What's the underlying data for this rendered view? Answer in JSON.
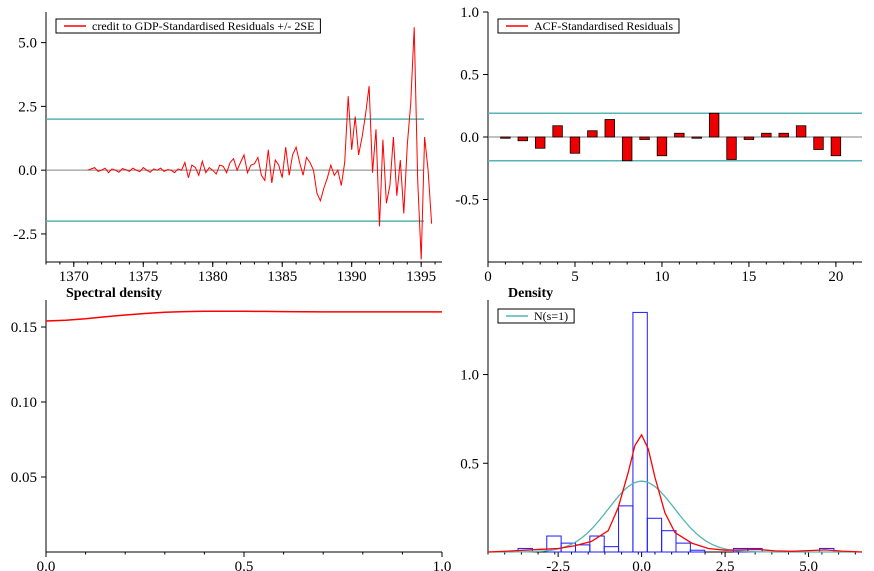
{
  "colors": {
    "series_red": "#ff0000",
    "band_teal": "#55b5b5",
    "hist_blue": "#1a1aff",
    "bar_fill": "#ee0000",
    "axis": "#000000",
    "zero_line": "#808080"
  },
  "chart_data": [
    {
      "id": "residuals",
      "type": "line",
      "title": "",
      "legend": [
        "credit to GDP-Standardised Residuals +/- 2SE"
      ],
      "legend_placement": "top-left",
      "xlim": [
        1368,
        1396.5
      ],
      "ylim": [
        -3.6,
        6.2
      ],
      "xticks": [
        1370,
        1375,
        1380,
        1385,
        1390,
        1395
      ],
      "yticks": [
        -2.5,
        0.0,
        2.5,
        5.0
      ],
      "ytick_labels": [
        "-2.5",
        "0.0",
        "2.5",
        "5.0"
      ],
      "bands": [
        2.0,
        -2.0
      ],
      "zero_line": 0.0,
      "series": [
        {
          "x": [
            1371.0,
            1371.25,
            1371.5,
            1371.75,
            1372.0,
            1372.25,
            1372.5,
            1372.75,
            1373.0,
            1373.25,
            1373.5,
            1373.75,
            1374.0,
            1374.25,
            1374.5,
            1374.75,
            1375.0,
            1375.25,
            1375.5,
            1375.75,
            1376.0,
            1376.25,
            1376.5,
            1376.75,
            1377.0,
            1377.25,
            1377.5,
            1377.75,
            1378.0,
            1378.25,
            1378.5,
            1378.75,
            1379.0,
            1379.25,
            1379.5,
            1379.75,
            1380.0,
            1380.25,
            1380.5,
            1380.75,
            1381.0,
            1381.25,
            1381.5,
            1381.75,
            1382.0,
            1382.25,
            1382.5,
            1382.75,
            1383.0,
            1383.25,
            1383.5,
            1383.75,
            1384.0,
            1384.25,
            1384.5,
            1384.75,
            1385.0,
            1385.25,
            1385.5,
            1385.75,
            1386.0,
            1386.25,
            1386.5,
            1386.75,
            1387.0,
            1387.25,
            1387.5,
            1387.75,
            1388.0,
            1388.25,
            1388.5,
            1388.75,
            1389.0,
            1389.25,
            1389.5,
            1389.75,
            1390.0,
            1390.25,
            1390.5,
            1390.75,
            1391.0,
            1391.25,
            1391.5,
            1391.75,
            1392.0,
            1392.25,
            1392.5,
            1392.75,
            1393.0,
            1393.25,
            1393.5,
            1393.75,
            1394.0,
            1394.25,
            1394.5,
            1394.75,
            1395.0,
            1395.25,
            1395.5,
            1395.75
          ],
          "y": [
            0.0,
            0.05,
            0.1,
            -0.05,
            0.0,
            0.08,
            -0.1,
            0.05,
            0.0,
            -0.08,
            0.06,
            0.02,
            -0.05,
            0.08,
            0.0,
            -0.06,
            0.1,
            0.0,
            -0.08,
            0.05,
            0.0,
            0.08,
            -0.05,
            0.02,
            0.0,
            -0.1,
            0.05,
            0.0,
            0.3,
            -0.3,
            0.2,
            0.1,
            -0.2,
            0.35,
            -0.1,
            0.1,
            0.0,
            -0.15,
            0.2,
            0.15,
            -0.1,
            0.3,
            0.45,
            0.0,
            0.3,
            0.6,
            -0.1,
            0.2,
            0.25,
            0.5,
            -0.2,
            -0.4,
            0.8,
            -0.5,
            0.4,
            0.2,
            -0.3,
            0.9,
            -0.2,
            0.6,
            0.9,
            0.3,
            -0.2,
            0.5,
            0.3,
            0.0,
            -0.9,
            -1.2,
            -0.7,
            -0.3,
            0.2,
            -0.2,
            0.0,
            -0.6,
            0.3,
            2.9,
            0.8,
            2.1,
            0.6,
            1.3,
            2.2,
            3.3,
            -0.1,
            1.6,
            -2.2,
            1.2,
            -1.3,
            -0.6,
            1.3,
            -1.0,
            0.4,
            -1.7,
            1.0,
            2.6,
            5.6,
            -0.4,
            -3.5,
            1.3,
            0.0,
            -2.1
          ]
        }
      ]
    },
    {
      "id": "acf",
      "type": "bar",
      "title": "",
      "legend": [
        "ACF-Standardised Residuals"
      ],
      "legend_placement": "top-left",
      "xlim": [
        0,
        21.5
      ],
      "ylim": [
        -1.0,
        1.0
      ],
      "xticks": [
        0,
        5,
        10,
        15,
        20
      ],
      "yticks": [
        -0.5,
        0.0,
        0.5,
        1.0
      ],
      "ytick_labels": [
        "-0.5",
        "0.0",
        "0.5",
        "1.0"
      ],
      "bands": [
        0.19,
        -0.19
      ],
      "zero_line": 0.0,
      "x": [
        1,
        2,
        3,
        4,
        5,
        6,
        7,
        8,
        9,
        10,
        11,
        12,
        13,
        14,
        15,
        16,
        17,
        18,
        19,
        20
      ],
      "values": [
        -0.01,
        -0.03,
        -0.09,
        0.09,
        -0.13,
        0.05,
        0.14,
        -0.19,
        -0.02,
        -0.15,
        0.03,
        -0.01,
        0.19,
        -0.18,
        -0.02,
        0.03,
        0.03,
        0.09,
        -0.1,
        -0.15
      ]
    },
    {
      "id": "spectral",
      "type": "line",
      "title": "Spectral density",
      "xlim": [
        0.0,
        1.0
      ],
      "ylim": [
        0.0,
        0.168
      ],
      "xticks": [
        0.0,
        0.5,
        1.0
      ],
      "xtick_labels": [
        "0.0",
        "0.5",
        "1.0"
      ],
      "yticks": [
        0.05,
        0.1,
        0.15
      ],
      "ytick_labels": [
        "0.05",
        "0.10",
        "0.15"
      ],
      "series": [
        {
          "x": [
            0.0,
            0.05,
            0.1,
            0.15,
            0.2,
            0.25,
            0.3,
            0.35,
            0.4,
            0.45,
            0.5,
            0.55,
            0.6,
            0.65,
            0.7,
            0.75,
            0.8,
            0.85,
            0.9,
            0.95,
            1.0
          ],
          "y": [
            0.154,
            0.1545,
            0.1555,
            0.1568,
            0.158,
            0.159,
            0.1598,
            0.1603,
            0.1605,
            0.1605,
            0.1605,
            0.1604,
            0.1603,
            0.1602,
            0.1601,
            0.1601,
            0.1601,
            0.1601,
            0.1601,
            0.1601,
            0.1601
          ]
        }
      ]
    },
    {
      "id": "density",
      "type": "bar",
      "title": "Density",
      "legend": [
        "N(s=1)"
      ],
      "legend_placement": "top-left",
      "xlim": [
        -4.6,
        6.6
      ],
      "ylim": [
        0.0,
        1.42
      ],
      "xticks": [
        -2.5,
        0.0,
        2.5,
        5.0
      ],
      "xtick_labels": [
        "-2.5",
        "0.0",
        "2.5",
        "5.0"
      ],
      "yticks": [
        0.5,
        1.0
      ],
      "ytick_labels": [
        "0.5",
        "1.0"
      ],
      "histogram": {
        "bin_width": 0.43,
        "bins_left": [
          -3.7,
          -3.27,
          -2.84,
          -2.41,
          -1.98,
          -1.55,
          -1.12,
          -0.69,
          -0.26,
          0.17,
          0.6,
          1.03,
          1.46,
          2.75,
          3.18,
          5.33
        ],
        "heights": [
          0.02,
          0.0,
          0.09,
          0.05,
          0.04,
          0.09,
          0.03,
          0.26,
          1.35,
          0.19,
          0.12,
          0.05,
          0.01,
          0.02,
          0.02,
          0.02
        ]
      },
      "normal_mean": 0.0,
      "normal_sd": 1.0,
      "kernel_density": {
        "x": [
          -4.6,
          -4.0,
          -3.5,
          -3.0,
          -2.5,
          -2.0,
          -1.5,
          -1.0,
          -0.7,
          -0.4,
          -0.2,
          0.0,
          0.2,
          0.4,
          0.7,
          1.0,
          1.5,
          2.0,
          2.5,
          3.0,
          3.5,
          4.0,
          4.5,
          5.0,
          5.5,
          6.0,
          6.6
        ],
        "y": [
          0.0,
          0.005,
          0.01,
          0.015,
          0.02,
          0.035,
          0.06,
          0.12,
          0.25,
          0.45,
          0.6,
          0.66,
          0.58,
          0.42,
          0.22,
          0.11,
          0.05,
          0.02,
          0.01,
          0.012,
          0.014,
          0.006,
          0.004,
          0.008,
          0.012,
          0.005,
          0.0
        ]
      }
    }
  ]
}
